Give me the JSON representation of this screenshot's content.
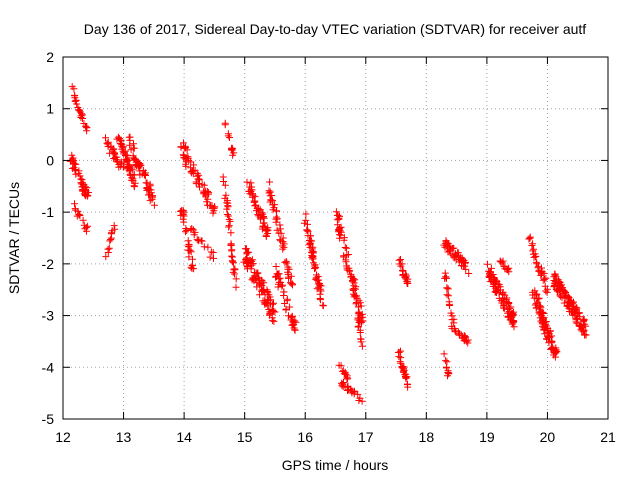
{
  "chart_data": {
    "type": "scatter",
    "title": "Day 136 of 2017, Sidereal Day-to-day VTEC variation (SDTVAR) for receiver autf",
    "xlabel": "GPS time / hours",
    "ylabel": "SDTVAR / TECUs",
    "xlim": [
      12,
      21
    ],
    "ylim": [
      -5,
      2
    ],
    "xticks": [
      "12",
      "13",
      "14",
      "15",
      "16",
      "17",
      "18",
      "19",
      "20",
      "21"
    ],
    "yticks": [
      "-5",
      "-4",
      "-3",
      "-2",
      "-1",
      "0",
      "1",
      "2"
    ],
    "grid": true,
    "marker": "+",
    "series_color": "#ff0000",
    "clusters": [
      {
        "x0": 12.15,
        "x1": 12.22,
        "y0": 1.45,
        "y1": 1.1,
        "n": 8,
        "spread": 0.05
      },
      {
        "x0": 12.22,
        "x1": 12.4,
        "y0": 1.1,
        "y1": 0.6,
        "n": 16,
        "spread": 0.09
      },
      {
        "x0": 12.12,
        "x1": 12.42,
        "y0": 0.1,
        "y1": -0.7,
        "n": 44,
        "spread": 0.24
      },
      {
        "x0": 12.15,
        "x1": 12.4,
        "y0": -0.8,
        "y1": -1.35,
        "n": 14,
        "spread": 0.12
      },
      {
        "x0": 12.7,
        "x1": 12.85,
        "y0": -1.9,
        "y1": -1.25,
        "n": 12,
        "spread": 0.09
      },
      {
        "x0": 12.7,
        "x1": 13.0,
        "y0": 0.4,
        "y1": -0.2,
        "n": 30,
        "spread": 0.2
      },
      {
        "x0": 12.9,
        "x1": 13.2,
        "y0": 0.5,
        "y1": -0.5,
        "n": 50,
        "spread": 0.28
      },
      {
        "x0": 13.1,
        "x1": 13.5,
        "y0": 0.35,
        "y1": -0.8,
        "n": 60,
        "spread": 0.3
      },
      {
        "x0": 13.92,
        "x1": 14.05,
        "y0": 0.35,
        "y1": -0.1,
        "n": 8,
        "spread": 0.1
      },
      {
        "x0": 13.9,
        "x1": 14.15,
        "y0": -0.6,
        "y1": -2.1,
        "n": 30,
        "spread": 0.3
      },
      {
        "x0": 14.0,
        "x1": 14.5,
        "y0": 0.2,
        "y1": -1.0,
        "n": 55,
        "spread": 0.3
      },
      {
        "x0": 14.1,
        "x1": 14.5,
        "y0": -1.3,
        "y1": -1.9,
        "n": 16,
        "spread": 0.15
      },
      {
        "x0": 14.68,
        "x1": 14.82,
        "y0": 0.75,
        "y1": 0.1,
        "n": 12,
        "spread": 0.08
      },
      {
        "x0": 14.65,
        "x1": 14.85,
        "y0": -0.3,
        "y1": -2.4,
        "n": 36,
        "spread": 0.28
      },
      {
        "x0": 15.05,
        "x1": 15.4,
        "y0": -0.4,
        "y1": -1.5,
        "n": 50,
        "spread": 0.28
      },
      {
        "x0": 15.0,
        "x1": 15.5,
        "y0": -1.8,
        "y1": -3.0,
        "n": 90,
        "spread": 0.38
      },
      {
        "x0": 15.4,
        "x1": 15.8,
        "y0": -0.5,
        "y1": -2.5,
        "n": 50,
        "spread": 0.3
      },
      {
        "x0": 15.5,
        "x1": 15.85,
        "y0": -2.1,
        "y1": -3.3,
        "n": 40,
        "spread": 0.28
      },
      {
        "x0": 16.0,
        "x1": 16.3,
        "y0": -1.1,
        "y1": -2.9,
        "n": 60,
        "spread": 0.33
      },
      {
        "x0": 16.5,
        "x1": 16.95,
        "y0": -1.0,
        "y1": -3.1,
        "n": 70,
        "spread": 0.38
      },
      {
        "x0": 16.55,
        "x1": 16.7,
        "y0": -3.9,
        "y1": -4.2,
        "n": 12,
        "spread": 0.09
      },
      {
        "x0": 16.6,
        "x1": 16.95,
        "y0": -4.3,
        "y1": -4.65,
        "n": 22,
        "spread": 0.1
      },
      {
        "x0": 16.8,
        "x1": 16.95,
        "y0": -2.5,
        "y1": -3.7,
        "n": 16,
        "spread": 0.18
      },
      {
        "x0": 17.55,
        "x1": 17.7,
        "y0": -1.9,
        "y1": -2.4,
        "n": 24,
        "spread": 0.14
      },
      {
        "x0": 17.55,
        "x1": 17.7,
        "y0": -3.7,
        "y1": -4.4,
        "n": 26,
        "spread": 0.15
      },
      {
        "x0": 18.3,
        "x1": 18.7,
        "y0": -1.6,
        "y1": -2.1,
        "n": 50,
        "spread": 0.18
      },
      {
        "x0": 18.3,
        "x1": 18.45,
        "y0": -2.2,
        "y1": -3.2,
        "n": 18,
        "spread": 0.18
      },
      {
        "x0": 18.4,
        "x1": 18.7,
        "y0": -3.2,
        "y1": -3.5,
        "n": 24,
        "spread": 0.1
      },
      {
        "x0": 18.3,
        "x1": 18.38,
        "y0": -3.7,
        "y1": -4.3,
        "n": 10,
        "spread": 0.09
      },
      {
        "x0": 19.0,
        "x1": 19.45,
        "y0": -2.1,
        "y1": -3.1,
        "n": 90,
        "spread": 0.3
      },
      {
        "x0": 19.2,
        "x1": 19.4,
        "y0": -1.9,
        "y1": -2.2,
        "n": 12,
        "spread": 0.08
      },
      {
        "x0": 19.7,
        "x1": 20.0,
        "y0": -1.55,
        "y1": -2.5,
        "n": 34,
        "spread": 0.22
      },
      {
        "x0": 19.75,
        "x1": 20.15,
        "y0": -2.5,
        "y1": -3.8,
        "n": 90,
        "spread": 0.33
      },
      {
        "x0": 20.1,
        "x1": 20.65,
        "y0": -2.3,
        "y1": -3.3,
        "n": 110,
        "spread": 0.3
      }
    ]
  }
}
